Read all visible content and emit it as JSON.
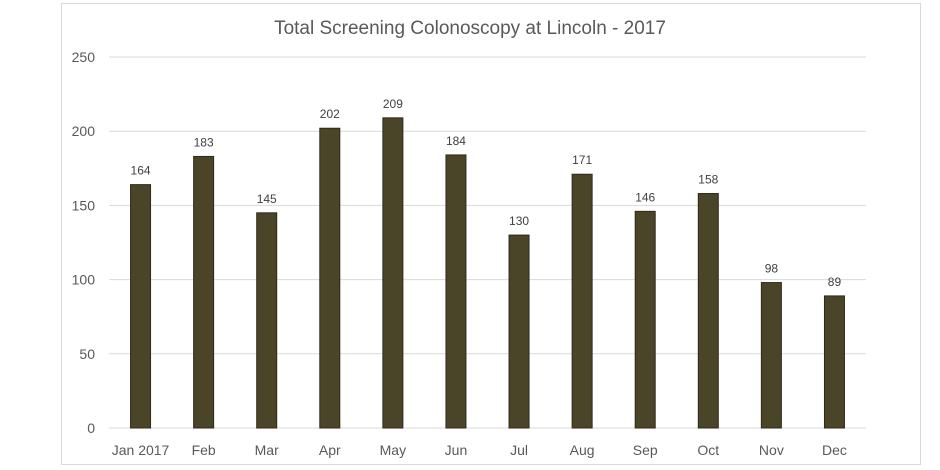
{
  "chart_data": {
    "type": "bar",
    "title": "Total Screening Colonoscopy at Lincoln - 2017",
    "xlabel": "",
    "ylabel": "",
    "categories": [
      "Jan 2017",
      "Feb",
      "Mar",
      "Apr",
      "May",
      "Jun",
      "Jul",
      "Aug",
      "Sep",
      "Oct",
      "Nov",
      "Dec"
    ],
    "values": [
      164,
      183,
      145,
      202,
      209,
      184,
      130,
      171,
      146,
      158,
      98,
      89
    ],
    "ylim": [
      0,
      250
    ],
    "yticks": [
      0,
      50,
      100,
      150,
      200,
      250
    ],
    "grid": true,
    "legend": "none",
    "bar_color": "#4a4429",
    "bar_edge_color": "#2e2a18",
    "grid_color": "#d9d9d9",
    "text_color": "#595959"
  }
}
